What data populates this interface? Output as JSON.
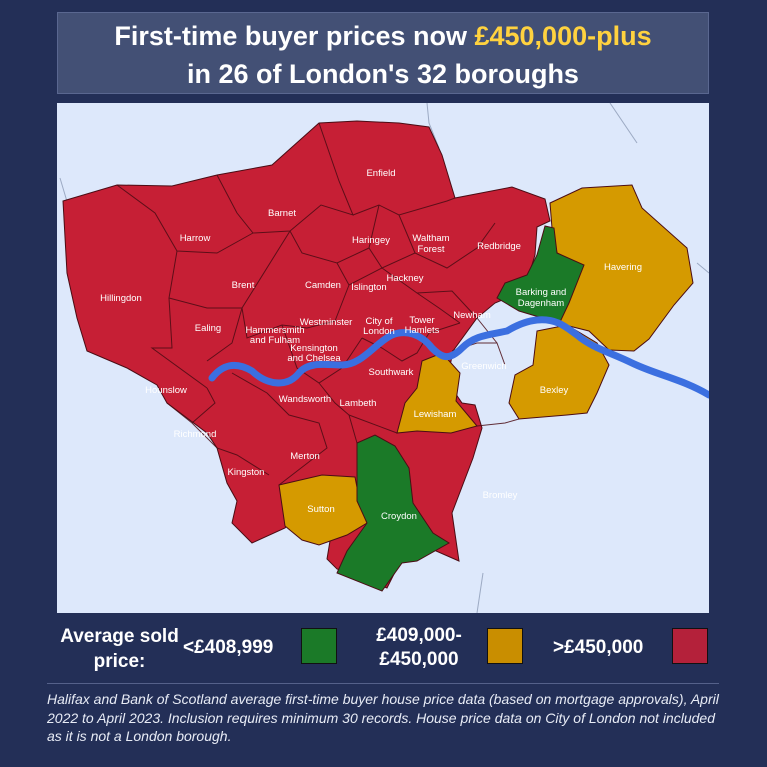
{
  "title": {
    "line1_before": "First-time buyer prices now ",
    "line1_highlight": "£450,000-plus",
    "line2": "in 26 of London's 32 boroughs"
  },
  "colors": {
    "green": "#1b7a28",
    "amber": "#d59a00",
    "red": "#c61f35",
    "river": "#3b6fe0",
    "background": "#232f57"
  },
  "map": {
    "boroughs": [
      {
        "name": "Enfield",
        "band": "high"
      },
      {
        "name": "Barnet",
        "band": "high"
      },
      {
        "name": "Harrow",
        "band": "high"
      },
      {
        "name": "Haringey",
        "band": "high"
      },
      {
        "name": "Waltham Forest",
        "band": "high"
      },
      {
        "name": "Redbridge",
        "band": "high"
      },
      {
        "name": "Havering",
        "band": "mid"
      },
      {
        "name": "Hillingdon",
        "band": "high"
      },
      {
        "name": "Brent",
        "band": "high"
      },
      {
        "name": "Camden",
        "band": "high"
      },
      {
        "name": "Islington",
        "band": "high"
      },
      {
        "name": "Hackney",
        "band": "high"
      },
      {
        "name": "Barking and Dagenham",
        "band": "low"
      },
      {
        "name": "Ealing",
        "band": "high"
      },
      {
        "name": "Hammersmith and Fulham",
        "band": "high"
      },
      {
        "name": "Westminster",
        "band": "high"
      },
      {
        "name": "City of London",
        "band": "high"
      },
      {
        "name": "Tower Hamlets",
        "band": "high"
      },
      {
        "name": "Newham",
        "band": "high"
      },
      {
        "name": "Kensington and Chelsea",
        "band": "high"
      },
      {
        "name": "Hounslow",
        "band": "high"
      },
      {
        "name": "Southwark",
        "band": "high"
      },
      {
        "name": "Greenwich",
        "band": "high"
      },
      {
        "name": "Bexley",
        "band": "mid"
      },
      {
        "name": "Wandsworth",
        "band": "high"
      },
      {
        "name": "Lambeth",
        "band": "high"
      },
      {
        "name": "Lewisham",
        "band": "mid"
      },
      {
        "name": "Richmond",
        "band": "high"
      },
      {
        "name": "Kingston",
        "band": "high"
      },
      {
        "name": "Merton",
        "band": "high"
      },
      {
        "name": "Sutton",
        "band": "mid"
      },
      {
        "name": "Croydon",
        "band": "low"
      },
      {
        "name": "Bromley",
        "band": "high"
      }
    ]
  },
  "legend": {
    "title": "Average sold price:",
    "items": [
      {
        "label": "<£408,999",
        "color": "#1b7a28"
      },
      {
        "label": "£409,000-£450,000",
        "color": "#d59a00"
      },
      {
        "label": ">£450,000",
        "color": "#c61f35"
      }
    ]
  },
  "footnote": "Halifax and Bank of Scotland average first-time buyer house price data (based on mortgage approvals), April 2022 to April 2023. Inclusion requires minimum 30 records. House price data on City of London not included as it is not a London borough."
}
